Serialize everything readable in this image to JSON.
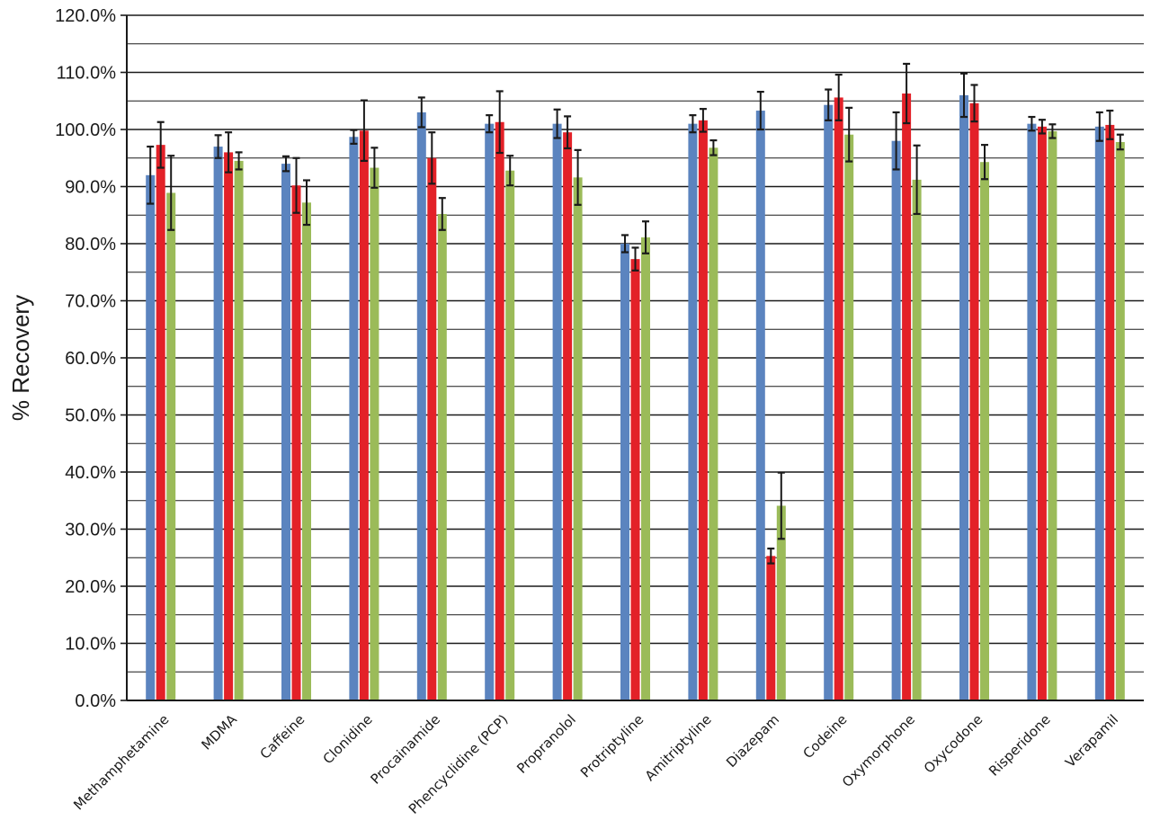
{
  "chart_data": {
    "type": "bar",
    "title": "",
    "xlabel": "",
    "ylabel": "% Recovery",
    "ylim": [
      0,
      120
    ],
    "y_tick_step": 10,
    "y_tick_labels": [
      "0.0%",
      "10.0%",
      "20.0%",
      "30.0%",
      "40.0%",
      "50.0%",
      "60.0%",
      "70.0%",
      "80.0%",
      "90.0%",
      "100.0%",
      "110.0%",
      "120.0%"
    ],
    "grid": true,
    "legend": "none",
    "categories": [
      "Methamphetamine",
      "MDMA",
      "Caffeine",
      "Clonidine",
      "Procainamide",
      "Phencyclidine (PCP)",
      "Propranolol",
      "Protriptyline",
      "Amitriptyline",
      "Diazepam",
      "Codeine",
      "Oxymorphone",
      "Oxycodone",
      "Risperidone",
      "Verapamil"
    ],
    "series": [
      {
        "color": "#5b84bf",
        "values": [
          92.0,
          97.0,
          94.0,
          98.7,
          103.0,
          101.0,
          101.0,
          80.0,
          101.0,
          103.3,
          104.3,
          98.0,
          106.0,
          101.0,
          100.5
        ],
        "errors": [
          5.0,
          2.0,
          1.3,
          1.2,
          2.6,
          1.5,
          2.5,
          1.5,
          1.5,
          3.3,
          2.7,
          5.0,
          3.8,
          1.2,
          2.5
        ]
      },
      {
        "color": "#e32128",
        "values": [
          97.3,
          96.0,
          90.2,
          99.8,
          95.0,
          101.3,
          99.5,
          77.3,
          101.6,
          25.3,
          105.6,
          106.3,
          104.6,
          100.5,
          100.8
        ],
        "errors": [
          4.0,
          3.5,
          4.8,
          5.3,
          4.5,
          5.4,
          2.8,
          2.0,
          2.0,
          1.3,
          4.0,
          5.2,
          3.2,
          1.2,
          2.5
        ]
      },
      {
        "color": "#9bbb59",
        "values": [
          88.9,
          94.5,
          87.2,
          93.3,
          85.2,
          92.8,
          91.6,
          81.1,
          96.8,
          34.1,
          99.1,
          91.2,
          94.3,
          99.7,
          97.8
        ],
        "errors": [
          6.5,
          1.5,
          3.9,
          3.5,
          2.8,
          2.6,
          4.8,
          2.8,
          1.3,
          5.8,
          4.7,
          6.0,
          3.0,
          1.2,
          1.3
        ]
      }
    ]
  }
}
